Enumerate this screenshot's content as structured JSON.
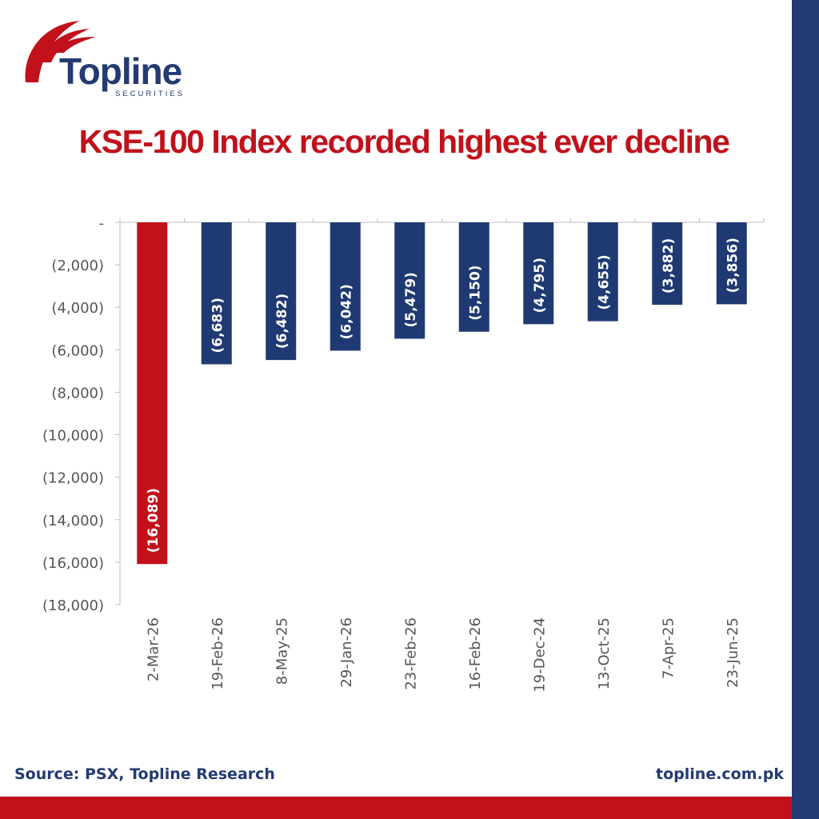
{
  "brand": {
    "name": "Topline",
    "tagline": "SECURITIES",
    "primary_color": "#233a72",
    "accent_color": "#c1111b"
  },
  "chart_data": {
    "type": "bar",
    "title": "KSE-100 Index recorded highest ever decline",
    "xlabel": "",
    "ylabel": "",
    "categories": [
      "2-Mar-26",
      "19-Feb-26",
      "8-May-25",
      "29-Jan-26",
      "23-Feb-26",
      "16-Feb-26",
      "19-Dec-24",
      "13-Oct-25",
      "7-Apr-25",
      "23-Jun-25"
    ],
    "values": [
      -16089,
      -6683,
      -6482,
      -6042,
      -5479,
      -5150,
      -4795,
      -4655,
      -3882,
      -3856
    ],
    "data_labels": [
      "(16,089)",
      "(6,683)",
      "(6,482)",
      "(6,042)",
      "(5,479)",
      "(5,150)",
      "(4,795)",
      "(4,655)",
      "(3,882)",
      "(3,856)"
    ],
    "bar_colors": [
      "#c1111b",
      "#1f3a72",
      "#1f3a72",
      "#1f3a72",
      "#1f3a72",
      "#1f3a72",
      "#1f3a72",
      "#1f3a72",
      "#1f3a72",
      "#1f3a72"
    ],
    "ylim": [
      -18000,
      0
    ],
    "yticks": [
      0,
      -2000,
      -4000,
      -6000,
      -8000,
      -10000,
      -12000,
      -14000,
      -16000,
      -18000
    ],
    "ytick_labels": [
      "-",
      "(2,000)",
      "(4,000)",
      "(6,000)",
      "(8,000)",
      "(10,000)",
      "(12,000)",
      "(14,000)",
      "(16,000)",
      "(18,000)"
    ],
    "grid": false,
    "legend": "none"
  },
  "footer": {
    "source": "Source: PSX, Topline Research",
    "url": "topline.com.pk"
  }
}
